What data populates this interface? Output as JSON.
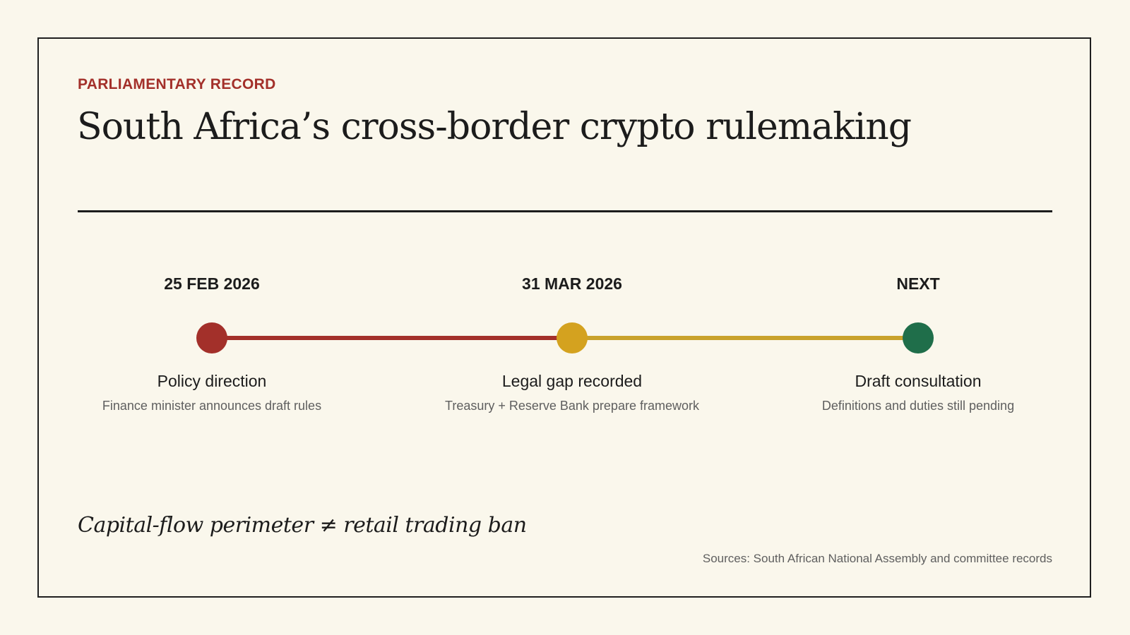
{
  "header": {
    "kicker": "PARLIAMENTARY RECORD",
    "title": "South Africa’s cross-border crypto rulemaking"
  },
  "timeline": {
    "milestones": [
      {
        "date": "25 FEB 2026",
        "label": "Policy direction",
        "description": "Finance minister announces draft rules",
        "color": "#a3302a"
      },
      {
        "date": "31 MAR 2026",
        "label": "Legal gap recorded",
        "description": "Treasury + Reserve Bank prepare framework",
        "color": "#d4a21f"
      },
      {
        "date": "NEXT",
        "label": "Draft consultation",
        "description": "Definitions and duties still pending",
        "color": "#1f6e4a"
      }
    ],
    "segment_colors": [
      "#a3302a",
      "#c9a22c"
    ]
  },
  "footer": {
    "tagline": "Capital-flow perimeter ≠ retail trading ban",
    "sources": "Sources: South African National Assembly and committee records"
  }
}
